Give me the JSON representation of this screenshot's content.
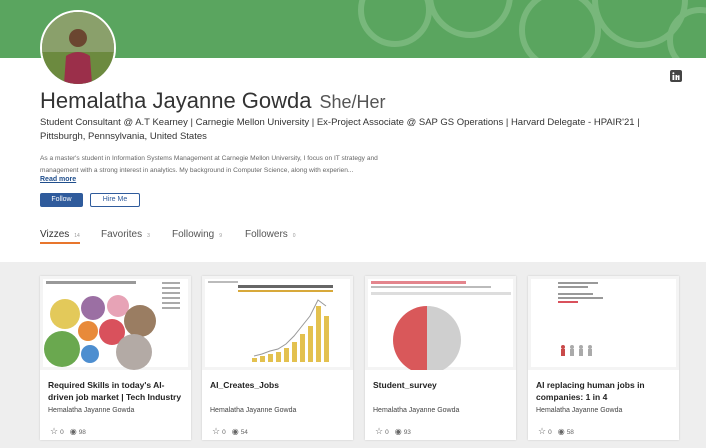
{
  "profile": {
    "name": "Hemalatha Jayanne Gowda",
    "pronouns": "She/Her",
    "headline": "Student Consultant @ A.T Kearney | Carnegie Mellon University | Ex-Project Associate @ SAP GS Operations | Harvard Delegate - HPAIR'21 |",
    "location": "Pittsburgh, Pennsylvania, United States",
    "bio": "As a master's student in Information Systems Management at Carnegie Mellon University, I focus on IT strategy and management with a strong interest in analytics. My background in Computer Science, along with experien...",
    "read_more": "Read more",
    "follow": "Follow",
    "hire": "Hire Me"
  },
  "tabs": [
    {
      "label": "Vizzes",
      "count": 14
    },
    {
      "label": "Favorites",
      "count": 3
    },
    {
      "label": "Following",
      "count": 9
    },
    {
      "label": "Followers",
      "count": 0
    }
  ],
  "cards": [
    {
      "title": "Required Skills in today's AI-driven job market | Tech Industry",
      "author": "Hemalatha Jayanne Gowda",
      "favorites": 0,
      "views": 98
    },
    {
      "title": "AI_Creates_Jobs",
      "author": "Hemalatha Jayanne Gowda",
      "favorites": 0,
      "views": 54
    },
    {
      "title": "Student_survey",
      "author": "Hemalatha Jayanne Gowda",
      "favorites": 0,
      "views": 93
    },
    {
      "title": "AI replacing human jobs in companies: 1 in 4",
      "author": "Hemalatha Jayanne Gowda",
      "favorites": 0,
      "views": 58
    }
  ]
}
